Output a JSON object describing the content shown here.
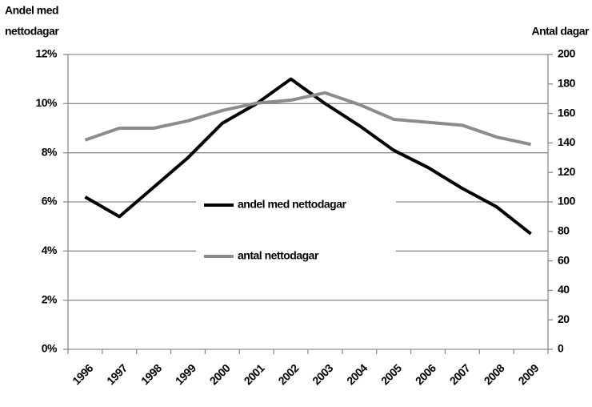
{
  "chart_data": {
    "type": "line",
    "y_label": [
      "Andel med",
      "nettodagar"
    ],
    "y2_label": "Antal dagar",
    "categories": [
      "1996",
      "1997",
      "1998",
      "1999",
      "2000",
      "2001",
      "2002",
      "2003",
      "2004",
      "2005",
      "2006",
      "2007",
      "2008",
      "2009"
    ],
    "series": [
      {
        "name": "andel med nettodagar",
        "color": "#000000",
        "values": [
          6.2,
          5.4,
          6.6,
          7.8,
          9.2,
          10.0,
          11.0,
          10.0,
          9.1,
          8.1,
          7.4,
          6.55,
          5.8,
          4.7
        ]
      },
      {
        "name": "antal nettodagar",
        "color": "#8c8c8c",
        "axis": "y2",
        "values": [
          142,
          150,
          150,
          155,
          162,
          167,
          169,
          174,
          166,
          156,
          154,
          152,
          144,
          139
        ]
      }
    ],
    "ylim": [
      0,
      12
    ],
    "yticks": [
      {
        "value": 0,
        "label": "0%"
      },
      {
        "value": 2,
        "label": "2%"
      },
      {
        "value": 4,
        "label": "4%"
      },
      {
        "value": 6,
        "label": "6%"
      },
      {
        "value": 8,
        "label": "8%"
      },
      {
        "value": 10,
        "label": "10%"
      },
      {
        "value": 12,
        "label": "12%"
      }
    ],
    "y2lim": [
      0,
      200
    ],
    "y2ticks": [
      0,
      20,
      40,
      60,
      80,
      100,
      120,
      140,
      160,
      180,
      200
    ],
    "grid": true
  }
}
